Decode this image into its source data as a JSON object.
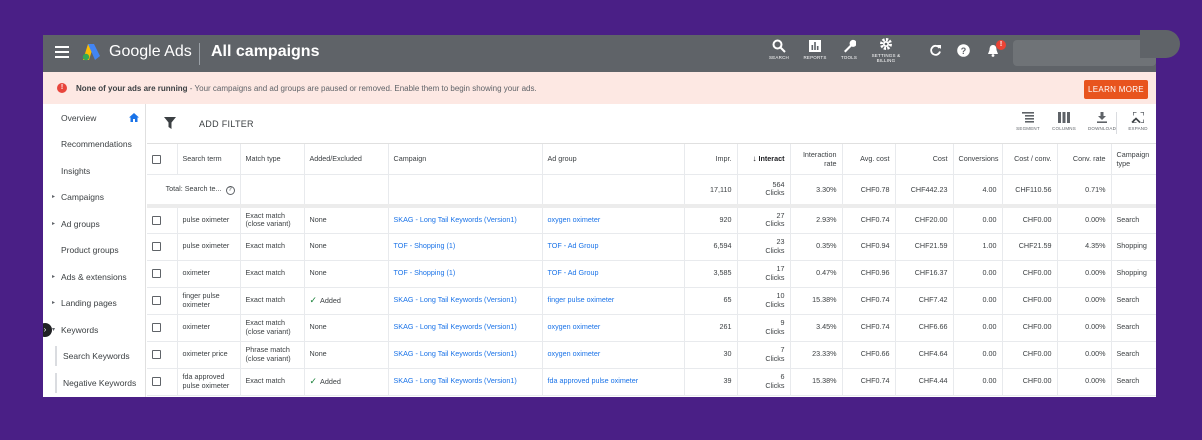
{
  "topbar": {
    "brand": "Google Ads",
    "page_title": "All campaigns",
    "tools": [
      {
        "icon": "search-icon",
        "label": "SEARCH"
      },
      {
        "icon": "reports-icon",
        "label": "REPORTS"
      },
      {
        "icon": "wrench-icon",
        "label": "TOOLS"
      },
      {
        "icon": "gear-icon",
        "label": "SETTINGS & BILLING"
      }
    ],
    "notification_count": "!"
  },
  "banner": {
    "bold_text": "None of your ads are running",
    "text": " - Your campaigns and ad groups are paused or removed. Enable them to begin showing your ads.",
    "button": "LEARN MORE"
  },
  "sidebar": {
    "items": [
      {
        "label": "Overview"
      },
      {
        "label": "Recommendations"
      },
      {
        "label": "Insights"
      },
      {
        "label": "Campaigns"
      },
      {
        "label": "Ad groups"
      },
      {
        "label": "Product groups"
      },
      {
        "label": "Ads & extensions"
      },
      {
        "label": "Landing pages"
      },
      {
        "label": "Keywords"
      }
    ],
    "sub_items": [
      {
        "label": "Search Keywords"
      },
      {
        "label": "Negative Keywords"
      }
    ]
  },
  "toolbar": {
    "add_filter": "ADD FILTER",
    "tools": [
      {
        "icon": "segment-icon",
        "label": "SEGMENT"
      },
      {
        "icon": "columns-icon",
        "label": "COLUMNS"
      },
      {
        "icon": "download-icon",
        "label": "DOWNLOAD"
      },
      {
        "icon": "expand-icon",
        "label": "EXPAND"
      }
    ]
  },
  "table": {
    "headers": [
      "Search term",
      "Match type",
      "Added/Excluded",
      "Campaign",
      "Ad group",
      "Impr.",
      "Interact",
      "Interaction rate",
      "Avg. cost",
      "Cost",
      "Conversions",
      "Cost / conv.",
      "Conv. rate",
      "Campaign type"
    ],
    "total": {
      "label": "Total: Search te...",
      "impr": "17,110",
      "interactions": "564",
      "interactions_unit": "Clicks",
      "interaction_rate": "3.30%",
      "avg_cost": "CHF0.78",
      "cost": "CHF442.23",
      "conversions": "4.00",
      "cost_conv": "CHF110.56",
      "conv_rate": "0.71%"
    },
    "rows": [
      {
        "term": "pulse oximeter",
        "match": "Exact match (close variant)",
        "added": "None",
        "added_check": false,
        "campaign": "SKAG - Long Tail Keywords (Version1)",
        "adgroup": "oxygen oximeter",
        "impr": "920",
        "interactions": "27",
        "unit": "Clicks",
        "rate": "2.93%",
        "avg_cost": "CHF0.74",
        "cost": "CHF20.00",
        "conv": "0.00",
        "cost_conv": "CHF0.00",
        "conv_rate": "0.00%",
        "type": "Search"
      },
      {
        "term": "pulse oximeter",
        "match": "Exact match",
        "added": "None",
        "added_check": false,
        "campaign": "TOF - Shopping (1)",
        "adgroup": "TOF - Ad Group",
        "impr": "6,594",
        "interactions": "23",
        "unit": "Clicks",
        "rate": "0.35%",
        "avg_cost": "CHF0.94",
        "cost": "CHF21.59",
        "conv": "1.00",
        "cost_conv": "CHF21.59",
        "conv_rate": "4.35%",
        "type": "Shopping"
      },
      {
        "term": "oximeter",
        "match": "Exact match",
        "added": "None",
        "added_check": false,
        "campaign": "TOF - Shopping (1)",
        "adgroup": "TOF - Ad Group",
        "impr": "3,585",
        "interactions": "17",
        "unit": "Clicks",
        "rate": "0.47%",
        "avg_cost": "CHF0.96",
        "cost": "CHF16.37",
        "conv": "0.00",
        "cost_conv": "CHF0.00",
        "conv_rate": "0.00%",
        "type": "Shopping"
      },
      {
        "term": "finger pulse oximeter",
        "match": "Exact match",
        "added": "Added",
        "added_check": true,
        "campaign": "SKAG - Long Tail Keywords (Version1)",
        "adgroup": "finger pulse oximeter",
        "impr": "65",
        "interactions": "10",
        "unit": "Clicks",
        "rate": "15.38%",
        "avg_cost": "CHF0.74",
        "cost": "CHF7.42",
        "conv": "0.00",
        "cost_conv": "CHF0.00",
        "conv_rate": "0.00%",
        "type": "Search"
      },
      {
        "term": "oximeter",
        "match": "Exact match (close variant)",
        "added": "None",
        "added_check": false,
        "campaign": "SKAG - Long Tail Keywords (Version1)",
        "adgroup": "oxygen oximeter",
        "impr": "261",
        "interactions": "9",
        "unit": "Clicks",
        "rate": "3.45%",
        "avg_cost": "CHF0.74",
        "cost": "CHF6.66",
        "conv": "0.00",
        "cost_conv": "CHF0.00",
        "conv_rate": "0.00%",
        "type": "Search"
      },
      {
        "term": "oximeter price",
        "match": "Phrase match (close variant)",
        "added": "None",
        "added_check": false,
        "campaign": "SKAG - Long Tail Keywords (Version1)",
        "adgroup": "oxygen oximeter",
        "impr": "30",
        "interactions": "7",
        "unit": "Clicks",
        "rate": "23.33%",
        "avg_cost": "CHF0.66",
        "cost": "CHF4.64",
        "conv": "0.00",
        "cost_conv": "CHF0.00",
        "conv_rate": "0.00%",
        "type": "Search"
      },
      {
        "term": "fda approved pulse oximeter",
        "match": "Exact match",
        "added": "Added",
        "added_check": true,
        "campaign": "SKAG - Long Tail Keywords (Version1)",
        "adgroup": "fda approved pulse oximeter",
        "impr": "39",
        "interactions": "6",
        "unit": "Clicks",
        "rate": "15.38%",
        "avg_cost": "CHF0.74",
        "cost": "CHF4.44",
        "conv": "0.00",
        "cost_conv": "CHF0.00",
        "conv_rate": "0.00%",
        "type": "Search"
      }
    ]
  },
  "colors": {
    "page_background": "#4a1f86",
    "topbar": "#5f6368",
    "banner": "#fde8e3",
    "accent_button": "#e8541e",
    "link": "#1a73e8",
    "active_nav": "#1a73e8"
  }
}
